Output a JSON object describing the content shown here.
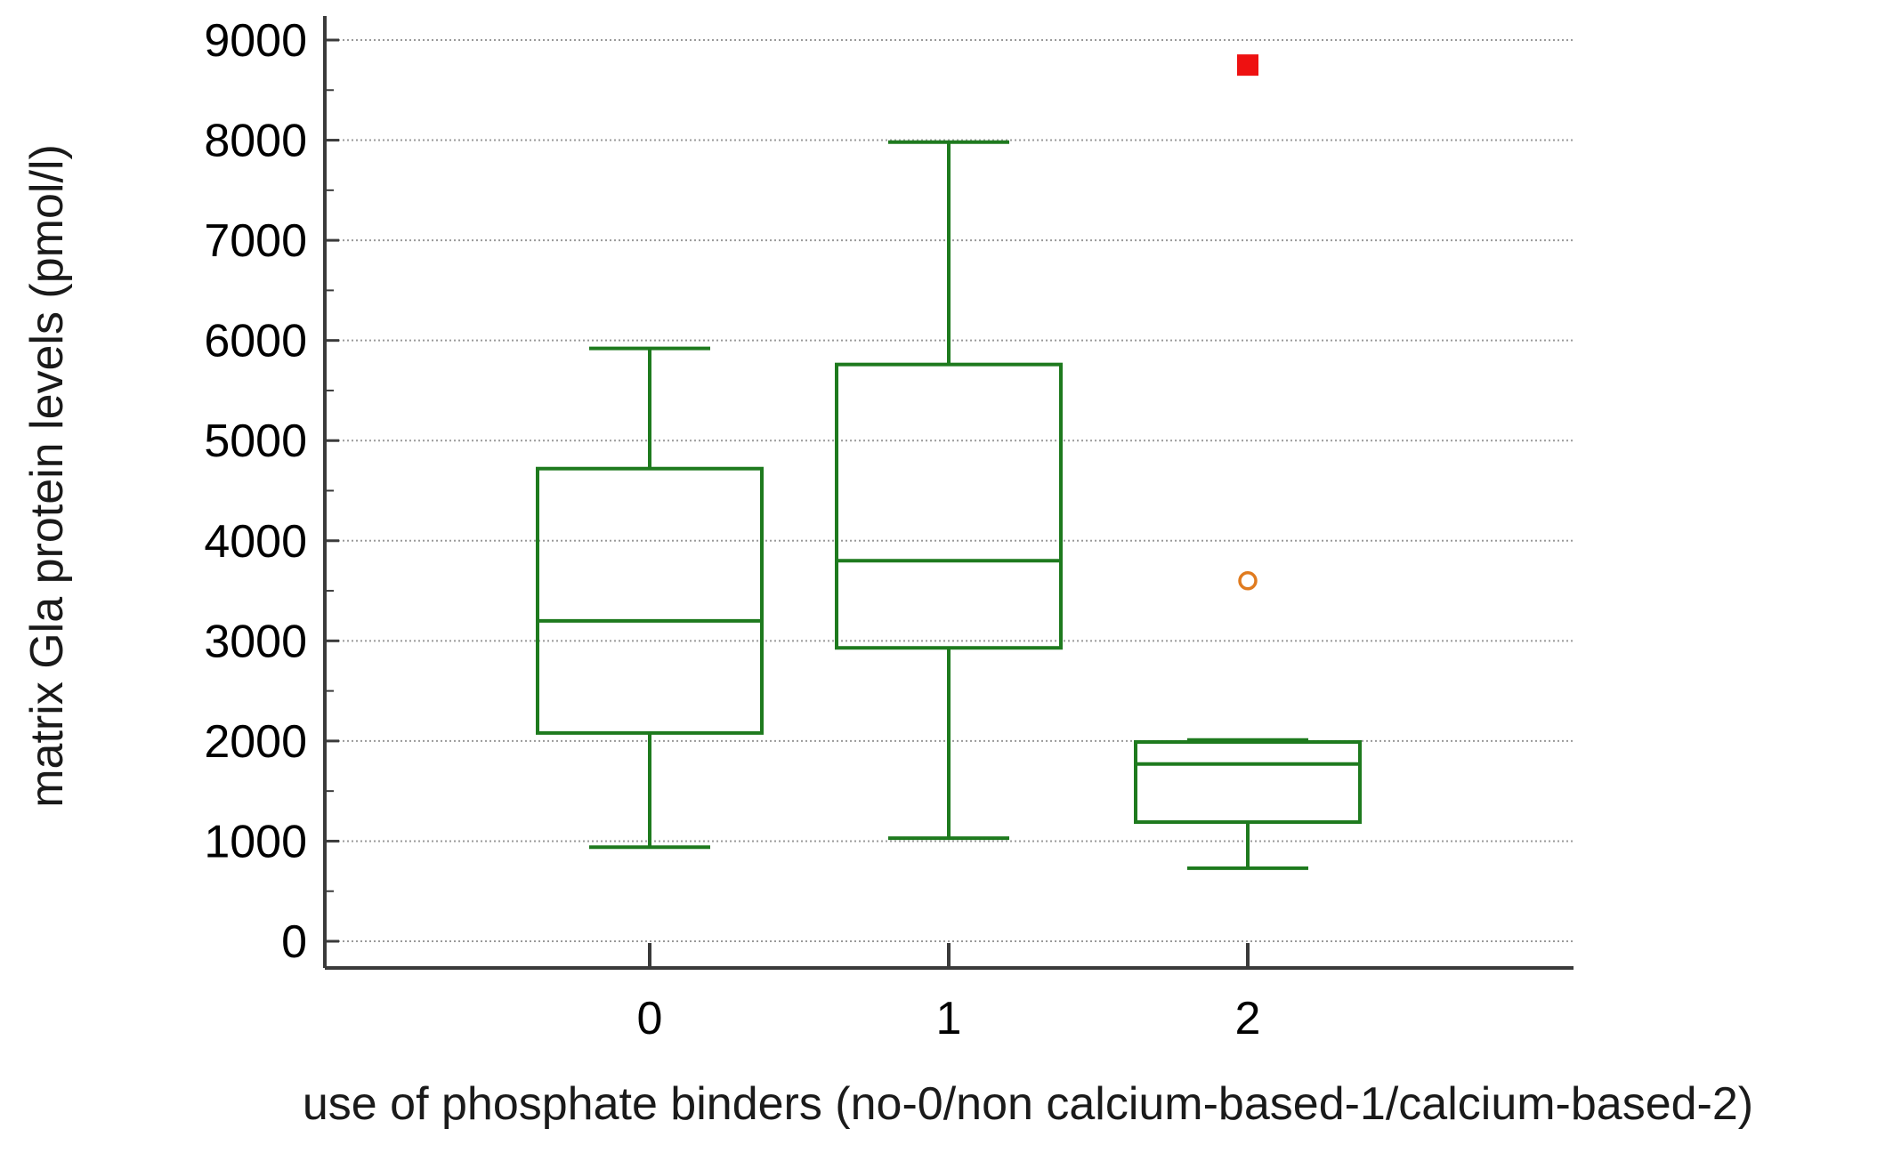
{
  "chart_data": {
    "type": "box",
    "title": "",
    "xlabel": "use of phosphate binders (no-0/non calcium-based-1/calcium-based-2)",
    "ylabel": "matrix Gla protein levels (pmol/l)",
    "ylim": [
      0,
      9000
    ],
    "yticks": [
      0,
      1000,
      2000,
      3000,
      4000,
      5000,
      6000,
      7000,
      8000,
      9000
    ],
    "grid": "horizontal dotted",
    "categories": [
      "0",
      "1",
      "2"
    ],
    "boxes": [
      {
        "category": "0",
        "whisker_low": 940,
        "q1": 2080,
        "median": 3200,
        "q3": 4720,
        "whisker_high": 5920
      },
      {
        "category": "1",
        "whisker_low": 1030,
        "q1": 2930,
        "median": 3800,
        "q3": 5760,
        "whisker_high": 7980
      },
      {
        "category": "2",
        "whisker_low": 730,
        "q1": 1190,
        "median": 1770,
        "q3": 1990,
        "whisker_high": 2010
      }
    ],
    "outliers": [
      {
        "category": "2",
        "value": 3600,
        "kind": "outside",
        "marker": "open-circle",
        "color": "#e07b1f"
      },
      {
        "category": "2",
        "value": 8750,
        "kind": "far-out",
        "marker": "filled-square",
        "color": "#ee1111"
      }
    ],
    "colors": {
      "box": "#1e7a1e",
      "axis": "#3a3a3a",
      "grid": "#9a9a9a"
    }
  }
}
